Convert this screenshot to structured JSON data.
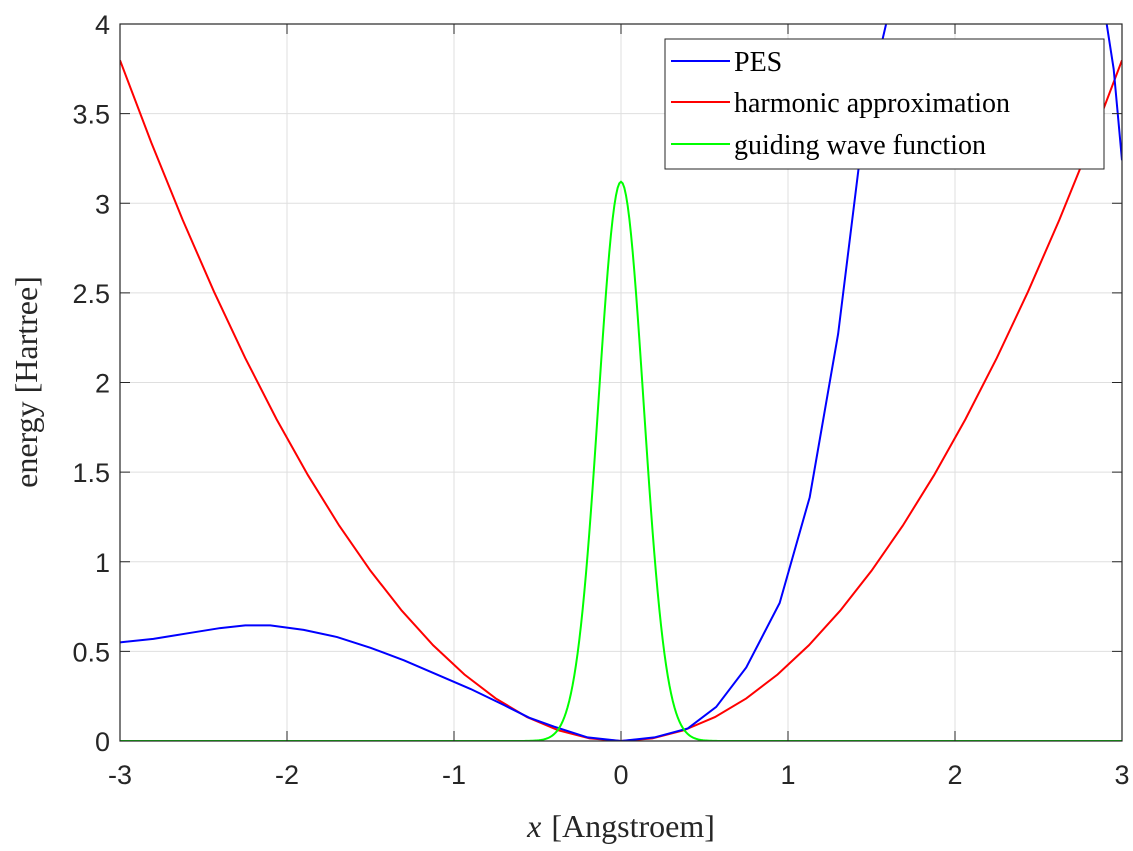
{
  "chart_data": {
    "type": "line",
    "title": "",
    "xlabel_var": "x",
    "xlabel_unit": "[Angstroem]",
    "ylabel": "energy [Hartree]",
    "xlim": [
      -3,
      3
    ],
    "ylim": [
      0,
      4
    ],
    "xticks": [
      -3,
      -2,
      -1,
      0,
      1,
      2,
      3
    ],
    "yticks": [
      0,
      0.5,
      1,
      1.5,
      2,
      2.5,
      3,
      3.5,
      4
    ],
    "grid": true,
    "legend_position": "top-right",
    "series": [
      {
        "name": "PES",
        "color": "#0000ff",
        "x": [
          -3.0,
          -2.8,
          -2.6,
          -2.4,
          -2.25,
          -2.1,
          -1.9,
          -1.7,
          -1.5,
          -1.3,
          -1.1,
          -0.9,
          -0.7,
          -0.55,
          -0.4,
          -0.2,
          0.0,
          0.2,
          0.4,
          0.57,
          0.75,
          0.95,
          1.13,
          1.3,
          1.45,
          1.55,
          1.6,
          2.9,
          2.95,
          3.0
        ],
        "y": [
          0.55,
          0.57,
          0.6,
          0.63,
          0.645,
          0.645,
          0.62,
          0.58,
          0.52,
          0.45,
          0.37,
          0.29,
          0.2,
          0.13,
          0.08,
          0.02,
          0.0,
          0.02,
          0.07,
          0.19,
          0.41,
          0.77,
          1.36,
          2.27,
          3.4,
          3.85,
          4.05,
          4.05,
          3.75,
          3.24
        ]
      },
      {
        "name": "harmonic approximation",
        "color": "#ff0000",
        "a": 0.422,
        "formula": "a*x^2"
      },
      {
        "name": "guiding wave function",
        "color": "#00ff00",
        "amplitude": 3.12,
        "sigma": 0.135,
        "formula": "amplitude*exp(-x^2/(2*sigma^2))"
      }
    ]
  }
}
